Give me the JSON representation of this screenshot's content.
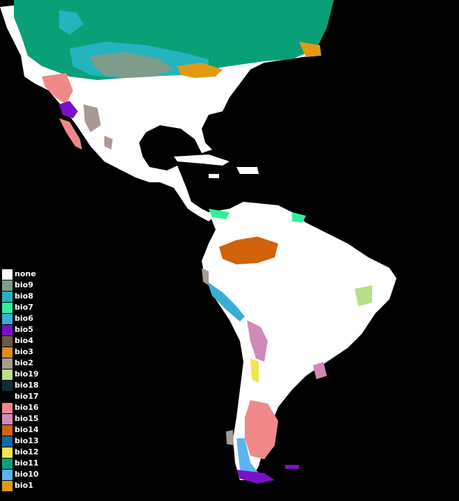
{
  "legend": {
    "items": [
      {
        "label": "none",
        "color": "#ffffff"
      },
      {
        "label": "bio9",
        "color": "#7f9c8a"
      },
      {
        "label": "bio8",
        "color": "#23b4bf"
      },
      {
        "label": "bio7",
        "color": "#2ff09a"
      },
      {
        "label": "bio6",
        "color": "#3aaed8"
      },
      {
        "label": "bio5",
        "color": "#7b0fc7"
      },
      {
        "label": "bio4",
        "color": "#6b5a42"
      },
      {
        "label": "bio3",
        "color": "#e08a1e"
      },
      {
        "label": "bio2",
        "color": "#a89a92"
      },
      {
        "label": "bio19",
        "color": "#b6e08a"
      },
      {
        "label": "bio18",
        "color": "#0f2d34"
      },
      {
        "label": "bio17",
        "color": "#000000"
      },
      {
        "label": "bio16",
        "color": "#f08a88"
      },
      {
        "label": "bio15",
        "color": "#d08ab8"
      },
      {
        "label": "bio14",
        "color": "#d2620a"
      },
      {
        "label": "bio13",
        "color": "#0b6aa8"
      },
      {
        "label": "bio12",
        "color": "#f2e44a"
      },
      {
        "label": "bio11",
        "color": "#0aa077"
      },
      {
        "label": "bio10",
        "color": "#5ab4ef"
      },
      {
        "label": "bio1",
        "color": "#e39a12"
      }
    ]
  },
  "colors": {
    "background": "#000000",
    "land_none": "#ffffff"
  }
}
